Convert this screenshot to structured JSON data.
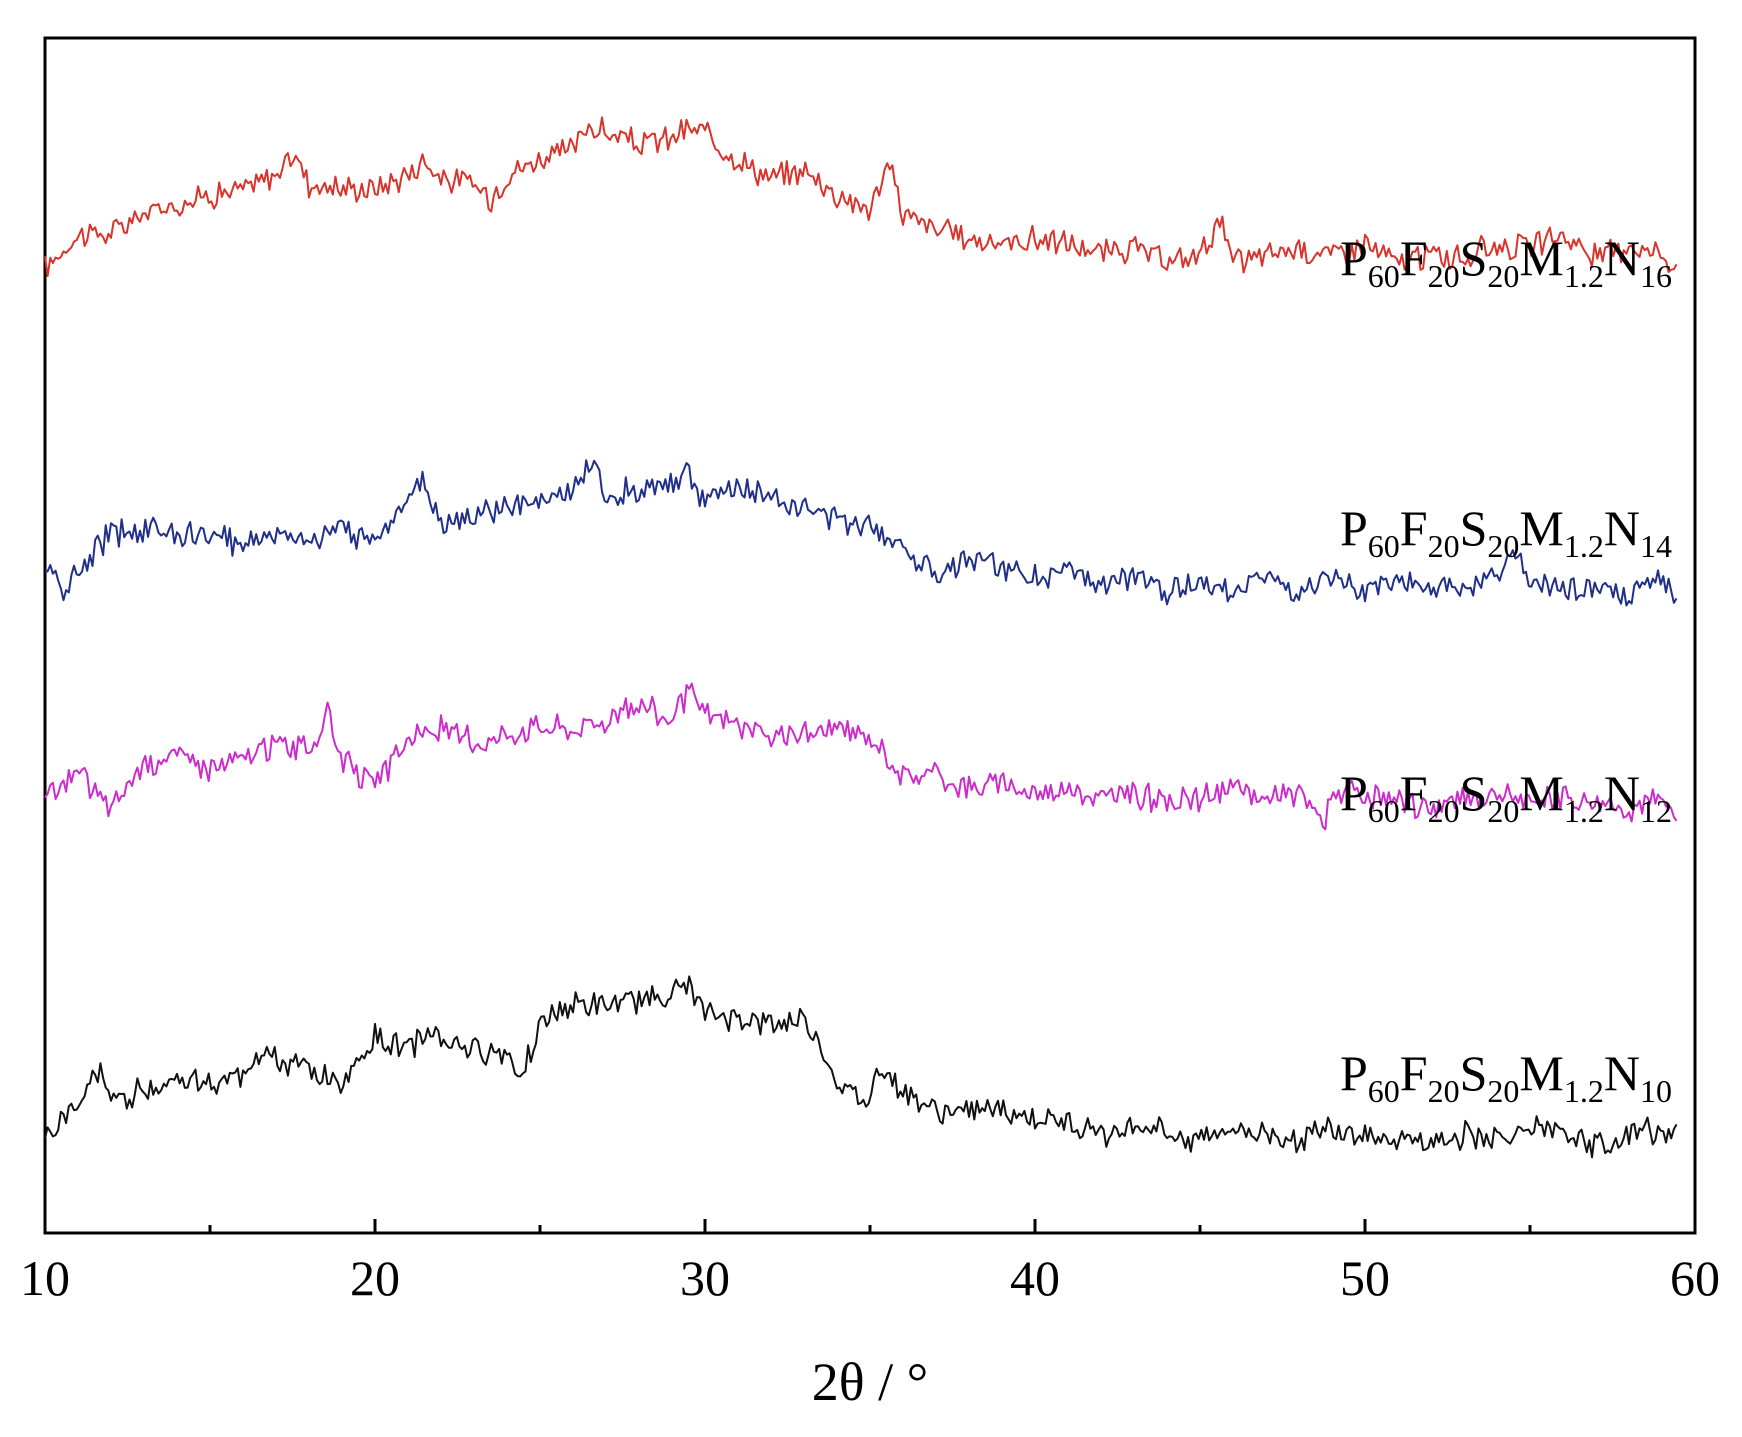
{
  "chart_data": {
    "type": "line",
    "title": "",
    "xlabel": "2θ / °",
    "ylabel": "",
    "xlim": [
      10,
      60
    ],
    "ylim": [
      0,
      10
    ],
    "xticks": [
      10,
      20,
      30,
      40,
      50,
      60
    ],
    "x_tick_labels": [
      "10",
      "20",
      "30",
      "40",
      "50",
      "60"
    ],
    "y_ticks_shown": false,
    "grid": false,
    "legend": "inline labels at right end of each trace",
    "series": [
      {
        "name": "P60F20S20M1.2N16",
        "label_parts": [
          [
            "P",
            ""
          ],
          [
            "60",
            "sub"
          ],
          [
            "F",
            ""
          ],
          [
            "20",
            "sub"
          ],
          [
            "S",
            ""
          ],
          [
            "20",
            "sub"
          ],
          [
            "M",
            ""
          ],
          [
            "1.2",
            "sub"
          ],
          [
            "N",
            ""
          ],
          [
            "16",
            "sub"
          ]
        ],
        "color": "#d9342b",
        "x": [
          10,
          11,
          12,
          13,
          14,
          15,
          16,
          17,
          17.6,
          18,
          19,
          20,
          21,
          21.5,
          22,
          23,
          23.5,
          24,
          25,
          26,
          26.5,
          27,
          28,
          29,
          29.5,
          30,
          31,
          32,
          33,
          34,
          35,
          35.6,
          36,
          37,
          38,
          39,
          40,
          41,
          42,
          43,
          44,
          45,
          45.6,
          46,
          47,
          48,
          49,
          50,
          51,
          52,
          53,
          54,
          55,
          56,
          57,
          58,
          59,
          59.5
        ],
        "y": [
          8.07,
          8.36,
          8.36,
          8.53,
          8.61,
          8.69,
          8.73,
          8.86,
          9.03,
          8.78,
          8.74,
          8.74,
          8.86,
          8.99,
          8.82,
          8.78,
          8.65,
          8.86,
          8.99,
          9.07,
          9.28,
          9.2,
          9.11,
          9.16,
          9.24,
          9.2,
          8.99,
          8.82,
          8.9,
          8.69,
          8.57,
          8.95,
          8.53,
          8.4,
          8.32,
          8.28,
          8.32,
          8.28,
          8.19,
          8.24,
          8.11,
          8.19,
          8.49,
          8.11,
          8.19,
          8.24,
          8.19,
          8.28,
          8.11,
          8.19,
          8.15,
          8.28,
          8.24,
          8.36,
          8.15,
          8.28,
          8.19,
          8.07
        ]
      },
      {
        "name": "P60F20S20M1.2N14",
        "label_parts": [
          [
            "P",
            ""
          ],
          [
            "60",
            "sub"
          ],
          [
            "F",
            ""
          ],
          [
            "20",
            "sub"
          ],
          [
            "S",
            ""
          ],
          [
            "20",
            "sub"
          ],
          [
            "M",
            ""
          ],
          [
            "1.2",
            "sub"
          ],
          [
            "N",
            ""
          ],
          [
            "14",
            "sub"
          ]
        ],
        "color": "#1f2f8a",
        "x": [
          10,
          10.5,
          11,
          12,
          13,
          14,
          15,
          16,
          17,
          18,
          19,
          20,
          21,
          21.5,
          22,
          23,
          24,
          25,
          26,
          26.5,
          27,
          28,
          29,
          29.5,
          30,
          31,
          32,
          33,
          34,
          35,
          36,
          37,
          38,
          39,
          40,
          41,
          42,
          43,
          44,
          45,
          46,
          47,
          48,
          49,
          50,
          51,
          52,
          53,
          54,
          54.6,
          55,
          56,
          57,
          58,
          59,
          59.5
        ],
        "y": [
          5.61,
          5.36,
          5.53,
          5.86,
          5.9,
          5.86,
          5.82,
          5.78,
          5.86,
          5.82,
          5.86,
          5.82,
          6.16,
          6.28,
          5.95,
          5.99,
          6.07,
          6.11,
          6.2,
          6.49,
          6.16,
          6.24,
          6.28,
          6.36,
          6.11,
          6.24,
          6.16,
          6.07,
          5.95,
          5.95,
          5.74,
          5.53,
          5.65,
          5.57,
          5.49,
          5.53,
          5.4,
          5.49,
          5.36,
          5.44,
          5.4,
          5.49,
          5.36,
          5.44,
          5.36,
          5.49,
          5.4,
          5.36,
          5.49,
          5.69,
          5.44,
          5.36,
          5.4,
          5.32,
          5.49,
          5.2
        ]
      },
      {
        "name": "P60F20S20M1.2N12",
        "label_parts": [
          [
            "P",
            ""
          ],
          [
            "60",
            "sub"
          ],
          [
            "F",
            ""
          ],
          [
            "20",
            "sub"
          ],
          [
            "S",
            ""
          ],
          [
            "20",
            "sub"
          ],
          [
            "M",
            ""
          ],
          [
            "1.2",
            "sub"
          ],
          [
            "N",
            ""
          ],
          [
            "12",
            "sub"
          ]
        ],
        "color": "#cc2ccc",
        "x": [
          10,
          11,
          12,
          13,
          14,
          15,
          16,
          17,
          18,
          18.6,
          19,
          20,
          21,
          22,
          23,
          24,
          25,
          26,
          27,
          28,
          29,
          29.5,
          30,
          31,
          32,
          33,
          34,
          35,
          35.5,
          36,
          37,
          38,
          39,
          40,
          41,
          42,
          43,
          44,
          45,
          46,
          47,
          48,
          48.8,
          49,
          50,
          51,
          52,
          53,
          54,
          55,
          56,
          57,
          58,
          59,
          59.5
        ],
        "y": [
          3.64,
          3.85,
          3.56,
          3.93,
          4.01,
          3.89,
          3.97,
          4.1,
          4.05,
          4.34,
          3.97,
          3.72,
          4.14,
          4.22,
          4.1,
          4.18,
          4.26,
          4.22,
          4.3,
          4.43,
          4.3,
          4.51,
          4.34,
          4.26,
          4.14,
          4.18,
          4.22,
          4.14,
          4.01,
          3.81,
          3.85,
          3.72,
          3.77,
          3.68,
          3.72,
          3.64,
          3.68,
          3.6,
          3.64,
          3.72,
          3.64,
          3.68,
          3.43,
          3.72,
          3.64,
          3.6,
          3.56,
          3.64,
          3.68,
          3.6,
          3.64,
          3.6,
          3.56,
          3.64,
          3.39
        ]
      },
      {
        "name": "P60F20S20M1.2N10",
        "label_parts": [
          [
            "P",
            ""
          ],
          [
            "60",
            "sub"
          ],
          [
            "F",
            ""
          ],
          [
            "20",
            "sub"
          ],
          [
            "S",
            ""
          ],
          [
            "20",
            "sub"
          ],
          [
            "M",
            ""
          ],
          [
            "1.2",
            "sub"
          ],
          [
            "N",
            ""
          ],
          [
            "10",
            "sub"
          ]
        ],
        "color": "#111111",
        "x": [
          10,
          11,
          11.7,
          12,
          13,
          14,
          15,
          16,
          16.6,
          17,
          18,
          19,
          20,
          21,
          21.8,
          22,
          23,
          24,
          24.4,
          25,
          26,
          27,
          28,
          29,
          29.4,
          30,
          31,
          32,
          33,
          33.4,
          34,
          35,
          35.2,
          36,
          37,
          38,
          39,
          40,
          41,
          42,
          42.3,
          43,
          44,
          45,
          46,
          47,
          48,
          49,
          50,
          51,
          52,
          53,
          54,
          55,
          56,
          57,
          58,
          58.3,
          59,
          59.5
        ],
        "y": [
          0.79,
          1.08,
          1.37,
          1.08,
          1.21,
          1.29,
          1.25,
          1.33,
          1.54,
          1.42,
          1.37,
          1.25,
          1.63,
          1.54,
          1.71,
          1.63,
          1.54,
          1.5,
          1.33,
          1.75,
          1.92,
          1.88,
          1.96,
          2.0,
          2.09,
          1.83,
          1.79,
          1.75,
          1.79,
          1.63,
          1.25,
          1.08,
          1.42,
          1.21,
          1.0,
          1.04,
          1.0,
          0.96,
          0.92,
          0.88,
          0.75,
          0.92,
          0.83,
          0.79,
          0.88,
          0.83,
          0.79,
          0.88,
          0.83,
          0.79,
          0.75,
          0.83,
          0.79,
          0.88,
          0.79,
          0.75,
          0.79,
          0.92,
          0.79,
          0.83
        ]
      }
    ]
  }
}
